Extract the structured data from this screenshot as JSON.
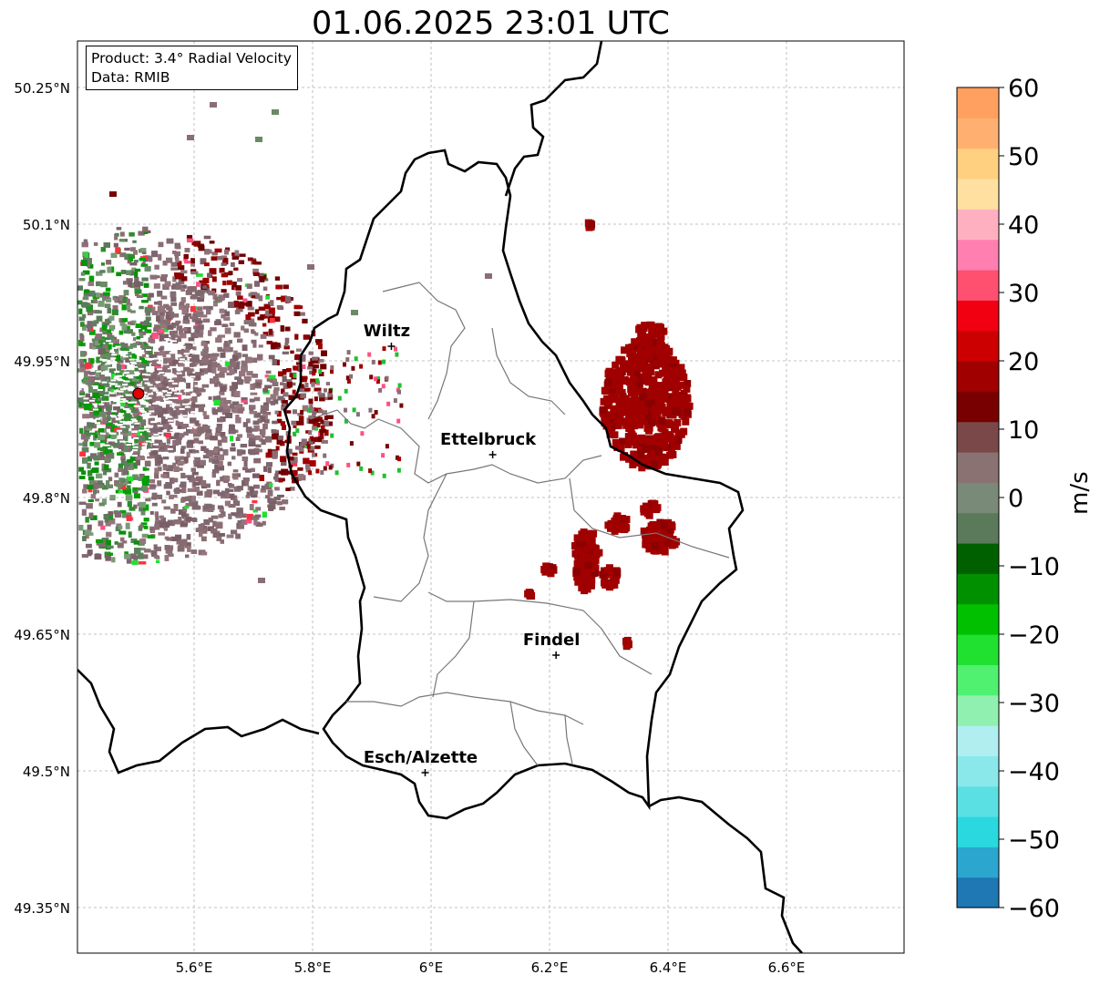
{
  "title": "01.06.2025 23:01 UTC",
  "info": {
    "product": "Product: 3.4° Radial Velocity",
    "source": "Data: RMIB"
  },
  "lat_labels": [
    "50.25°N",
    "50.1°N",
    "49.95°N",
    "49.8°N",
    "49.65°N",
    "49.5°N",
    "49.35°N"
  ],
  "lon_labels": [
    "5.6°E",
    "5.8°E",
    "6°E",
    "6.2°E",
    "6.4°E",
    "6.6°E"
  ],
  "cities": [
    {
      "name": "Wiltz",
      "lon": 5.933,
      "lat": 49.966
    },
    {
      "name": "Ettelbruck",
      "lon": 6.104,
      "lat": 49.847
    },
    {
      "name": "Findel",
      "lon": 6.211,
      "lat": 49.627
    },
    {
      "name": "Esch/Alzette",
      "lon": 5.99,
      "lat": 49.498
    }
  ],
  "radar_site": {
    "lon": 5.506,
    "lat": 49.914
  },
  "colorbar": {
    "label": "m/s",
    "min": -60,
    "max": 60,
    "ticks": [
      "60",
      "50",
      "40",
      "30",
      "20",
      "10",
      "0",
      "−10",
      "−20",
      "−30",
      "−40",
      "−50",
      "−60"
    ],
    "colors": [
      "#1f77b4",
      "#2aa6cf",
      "#2ad8df",
      "#5ae0e3",
      "#8ae8ea",
      "#b0eef0",
      "#90f0b0",
      "#50f070",
      "#20e030",
      "#00c000",
      "#009000",
      "#006000",
      "#5a7a5a",
      "#7a8a78",
      "#8a7272",
      "#7a4848",
      "#780000",
      "#a00000",
      "#cc0000",
      "#f00010",
      "#ff5070",
      "#ff80b0",
      "#ffb0c0",
      "#ffe0a0",
      "#ffd080",
      "#ffb070",
      "#ffa060"
    ]
  }
}
